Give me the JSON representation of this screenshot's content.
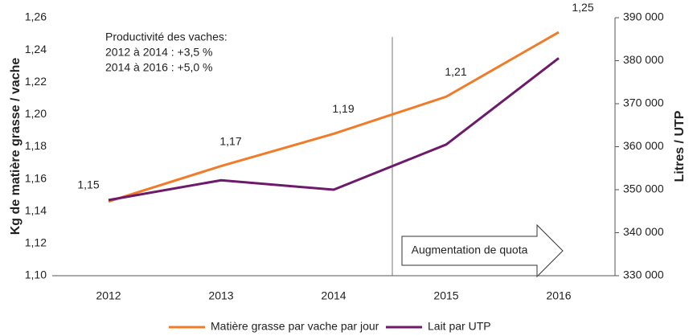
{
  "chart_data": {
    "type": "line",
    "categories": [
      "2012",
      "2013",
      "2014",
      "2015",
      "2016"
    ],
    "ylabel": "Kg de matière grasse / vache",
    "y2label": "Litres / UTP",
    "ylim": [
      1.1,
      1.26
    ],
    "yticks": [
      {
        "value": 1.1,
        "label": "1,10"
      },
      {
        "value": 1.12,
        "label": "1,12"
      },
      {
        "value": 1.14,
        "label": "1,14"
      },
      {
        "value": 1.16,
        "label": "1,16"
      },
      {
        "value": 1.18,
        "label": "1,18"
      },
      {
        "value": 1.2,
        "label": "1,20"
      },
      {
        "value": 1.22,
        "label": "1,22"
      },
      {
        "value": 1.24,
        "label": "1,24"
      },
      {
        "value": 1.26,
        "label": "1,26"
      }
    ],
    "y2lim": [
      330000,
      390000
    ],
    "y2ticks": [
      {
        "value": 330000,
        "label": "330 000"
      },
      {
        "value": 340000,
        "label": "340 000"
      },
      {
        "value": 350000,
        "label": "350 000"
      },
      {
        "value": 360000,
        "label": "360 000"
      },
      {
        "value": 370000,
        "label": "370 000"
      },
      {
        "value": 380000,
        "label": "380 000"
      },
      {
        "value": 390000,
        "label": "390 000"
      }
    ],
    "series": [
      {
        "name": "Matière grasse par vache par jour",
        "color": "#f07c2a",
        "values": [
          1.146,
          1.168,
          1.188,
          1.211,
          1.251
        ],
        "value_labels": [
          "1,15",
          "1,17",
          "1,19",
          "1,21",
          "1,25"
        ]
      },
      {
        "name": "Lait par UTP",
        "color": "#6e1a6a",
        "axis": "y2",
        "values": [
          347600,
          352200,
          350000,
          360500,
          380600
        ]
      }
    ],
    "annotations": [
      "Productivité des vaches:",
      "2012 à 2014 : +3,5 %",
      "2014 à 2016 : +5,0 %"
    ],
    "arrow_label": "Augmentation de quota"
  }
}
